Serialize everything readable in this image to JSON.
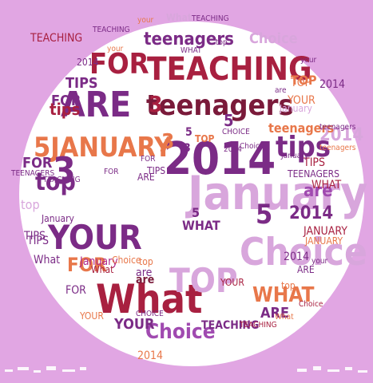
{
  "colors": {
    "frame": "#e1a6e3",
    "canvas": "#ffffff",
    "purple": "#7b2b86",
    "lavender": "#d8a6dc",
    "violet": "#a04ab0",
    "crimson": "#a82040",
    "maroon": "#7a1a3a",
    "orange": "#e8774a",
    "magenta": "#b02a8a",
    "plum": "#8a3a9a"
  },
  "words": [
    {
      "t": "January",
      "c": "lavender"
    },
    {
      "t": "Choice",
      "c": "lavender"
    },
    {
      "t": "2014",
      "c": "purple"
    },
    {
      "t": "What",
      "c": "crimson"
    },
    {
      "t": "YOUR",
      "c": "purple"
    },
    {
      "t": "ARE",
      "c": "purple"
    },
    {
      "t": "TEACHING",
      "c": "crimson"
    },
    {
      "t": "teenagers",
      "c": "maroon"
    },
    {
      "t": "FOR",
      "c": "crimson"
    },
    {
      "t": "teenagers",
      "c": "purple"
    },
    {
      "t": "5JANUARY",
      "c": "orange"
    },
    {
      "t": "tips",
      "c": "purple"
    },
    {
      "t": "top",
      "c": "purple"
    },
    {
      "t": "3",
      "c": "purple"
    },
    {
      "t": "TOP",
      "c": "lavender"
    },
    {
      "t": "are",
      "c": "violet"
    },
    {
      "t": "2014",
      "c": "purple"
    },
    {
      "t": "5",
      "c": "purple"
    },
    {
      "t": "Choice",
      "c": "violet"
    },
    {
      "t": "WHAT",
      "c": "orange"
    },
    {
      "t": "TIPS",
      "c": "purple"
    },
    {
      "t": "TIPS",
      "c": "purple"
    },
    {
      "t": "FOR",
      "c": "orange"
    },
    {
      "t": "FOR",
      "c": "purple"
    },
    {
      "t": "tips",
      "c": "crimson"
    },
    {
      "t": "3",
      "c": "crimson"
    },
    {
      "t": "are",
      "c": "maroon"
    },
    {
      "t": "YOUR",
      "c": "purple"
    },
    {
      "t": "TEACHING",
      "c": "purple"
    },
    {
      "t": "2014",
      "c": "lavender"
    },
    {
      "t": "JANUARY",
      "c": "crimson"
    },
    {
      "t": "ARE",
      "c": "purple"
    },
    {
      "t": "WHAT",
      "c": "crimson"
    },
    {
      "t": "teenagers",
      "c": "orange"
    },
    {
      "t": "TEENAGERS",
      "c": "purple"
    },
    {
      "t": "TOP",
      "c": "orange"
    },
    {
      "t": "2014",
      "c": "purple"
    },
    {
      "t": "top",
      "c": "lavender"
    },
    {
      "t": "TIPS",
      "c": "purple"
    },
    {
      "t": "FOR",
      "c": "purple"
    },
    {
      "t": "January",
      "c": "purple"
    },
    {
      "t": "Choice",
      "c": "lavender"
    },
    {
      "t": "TEACHING",
      "c": "crimson"
    },
    {
      "t": "your",
      "c": "orange"
    },
    {
      "t": "What",
      "c": "lavender"
    },
    {
      "t": "teenagers",
      "c": "purple"
    },
    {
      "t": "TEACHING",
      "c": "purple"
    },
    {
      "t": "January",
      "c": "magenta"
    },
    {
      "t": "Choice",
      "c": "orange"
    },
    {
      "t": "2014",
      "c": "purple"
    },
    {
      "t": "YOUR",
      "c": "orange"
    },
    {
      "t": "TOP",
      "c": "orange"
    },
    {
      "t": "WHAT",
      "c": "purple"
    },
    {
      "t": "What",
      "c": "purple"
    },
    {
      "t": "FOR",
      "c": "purple"
    },
    {
      "t": "TIPS",
      "c": "crimson"
    },
    {
      "t": "are",
      "c": "purple"
    },
    {
      "t": "top",
      "c": "orange"
    },
    {
      "t": "3",
      "c": "orange"
    },
    {
      "t": "5",
      "c": "purple"
    },
    {
      "t": "2014",
      "c": "purple"
    },
    {
      "t": "ARE",
      "c": "purple"
    },
    {
      "t": "CHOICE",
      "c": "purple"
    },
    {
      "t": "your",
      "c": "purple"
    },
    {
      "t": "YOUR",
      "c": "crimson"
    },
    {
      "t": "What",
      "c": "orange"
    },
    {
      "t": "TEACHING",
      "c": "crimson"
    },
    {
      "t": "Choice",
      "c": "crimson"
    },
    {
      "t": "3",
      "c": "orange"
    },
    {
      "t": "5",
      "c": "purple"
    },
    {
      "t": "TIPS",
      "c": "purple"
    },
    {
      "t": "What",
      "c": "crimson"
    },
    {
      "t": "ARE",
      "c": "purple"
    },
    {
      "t": "JANUARY",
      "c": "orange"
    },
    {
      "t": "top",
      "c": "orange"
    },
    {
      "t": "teenagers",
      "c": "orange"
    },
    {
      "t": "January",
      "c": "purple"
    },
    {
      "t": "January",
      "c": "lavender"
    },
    {
      "t": "TOP",
      "c": "orange"
    },
    {
      "t": "2014",
      "c": "purple"
    },
    {
      "t": "YOUR",
      "c": "orange"
    },
    {
      "t": "3",
      "c": "purple"
    },
    {
      "t": "5",
      "c": "purple"
    },
    {
      "t": "TEACHING",
      "c": "purple"
    },
    {
      "t": "CHOICE",
      "c": "purple"
    },
    {
      "t": "your",
      "c": "orange"
    },
    {
      "t": "Choice",
      "c": "purple"
    },
    {
      "t": "WHAT",
      "c": "purple"
    },
    {
      "t": "are",
      "c": "purple"
    },
    {
      "t": "2014",
      "c": "orange"
    },
    {
      "t": "FOR",
      "c": "purple"
    },
    {
      "t": "TEENAGERS",
      "c": "purple"
    },
    {
      "t": "top",
      "c": "purple"
    },
    {
      "t": "your",
      "c": "purple"
    },
    {
      "t": "TEACHING",
      "c": "purple"
    },
    {
      "t": "FOR",
      "c": "purple"
    }
  ]
}
